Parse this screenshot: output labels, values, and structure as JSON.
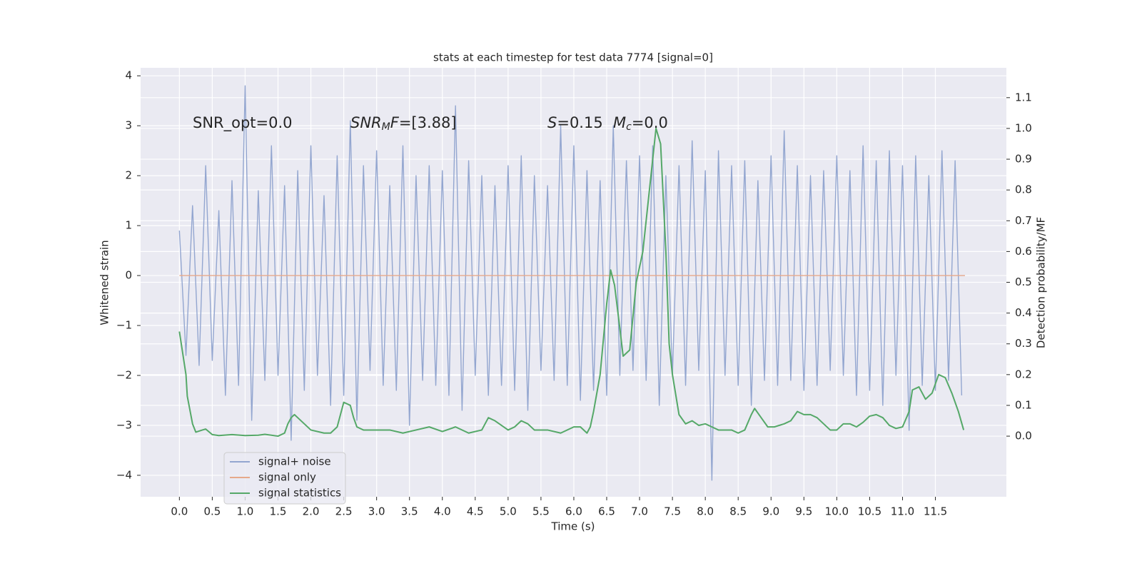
{
  "chart_data": {
    "type": "line",
    "title": "stats at each timestep for test data 7774 [signal=0]",
    "x_label": "Time (s)",
    "y_label": "Whitened strain",
    "y2_label": "Detection probability/MF",
    "annotations": [
      [
        {
          "text": "SNR_opt=0.0",
          "italic": false,
          "sub": false
        }
      ],
      [
        {
          "text": "SNR",
          "italic": true,
          "sub": false
        },
        {
          "text": "M",
          "italic": true,
          "sub": true
        },
        {
          "text": "F",
          "italic": true,
          "sub": false
        },
        {
          "text": "=[3.88]",
          "italic": false,
          "sub": false
        }
      ],
      [
        {
          "text": "S",
          "italic": true,
          "sub": false
        },
        {
          "text": "=0.15",
          "italic": false,
          "sub": false
        }
      ],
      [
        {
          "text": "M",
          "italic": true,
          "sub": false
        },
        {
          "text": "c",
          "italic": true,
          "sub": true
        },
        {
          "text": "=0.0",
          "italic": false,
          "sub": false
        }
      ]
    ],
    "xlim": [
      -0.59,
      12.58
    ],
    "ylim": [
      -4.43,
      4.16
    ],
    "y2lim": [
      -0.197,
      1.197
    ],
    "xticks": [
      {
        "value": 0,
        "label": "0.0"
      },
      {
        "value": 0.5,
        "label": "0.5"
      },
      {
        "value": 1,
        "label": "1.0"
      },
      {
        "value": 1.5,
        "label": "1.5"
      },
      {
        "value": 2,
        "label": "2.0"
      },
      {
        "value": 2.5,
        "label": "2.5"
      },
      {
        "value": 3,
        "label": "3.0"
      },
      {
        "value": 3.5,
        "label": "3.5"
      },
      {
        "value": 4,
        "label": "4.0"
      },
      {
        "value": 4.5,
        "label": "4.5"
      },
      {
        "value": 5,
        "label": "5.0"
      },
      {
        "value": 5.5,
        "label": "5.5"
      },
      {
        "value": 6,
        "label": "6.0"
      },
      {
        "value": 6.5,
        "label": "6.5"
      },
      {
        "value": 7,
        "label": "7.0"
      },
      {
        "value": 7.5,
        "label": "7.5"
      },
      {
        "value": 8,
        "label": "8.0"
      },
      {
        "value": 8.5,
        "label": "8.5"
      },
      {
        "value": 9,
        "label": "9.0"
      },
      {
        "value": 9.5,
        "label": "9.5"
      },
      {
        "value": 10,
        "label": "10.0"
      },
      {
        "value": 10.5,
        "label": "10.5"
      },
      {
        "value": 11,
        "label": "11.0"
      },
      {
        "value": 11.5,
        "label": "11.5"
      }
    ],
    "yticks": [
      {
        "value": -4,
        "label": "−4"
      },
      {
        "value": -3,
        "label": "−3"
      },
      {
        "value": -2,
        "label": "−2"
      },
      {
        "value": -1,
        "label": "−1"
      },
      0,
      1,
      2,
      3,
      4
    ],
    "y2ticks": [
      {
        "value": 0,
        "label": "0.0"
      },
      0.1,
      0.2,
      0.3,
      0.4,
      0.5,
      0.6,
      0.7,
      0.8,
      0.9,
      {
        "value": 1,
        "label": "1.0"
      },
      1.1
    ],
    "grid": true,
    "legend": "lower left",
    "series": [
      {
        "name": "signal+ noise",
        "color": "#93a6d0",
        "x": [
          0,
          0.1,
          0.2,
          0.3,
          0.4,
          0.5,
          0.6,
          0.7,
          0.8,
          0.9,
          1,
          1.1,
          1.2,
          1.3,
          1.4,
          1.5,
          1.6,
          1.7,
          1.8,
          1.9,
          2,
          2.1,
          2.2,
          2.3,
          2.4,
          2.5,
          2.6,
          2.7,
          2.8,
          2.9,
          3,
          3.1,
          3.2,
          3.3,
          3.4,
          3.5,
          3.6,
          3.7,
          3.8,
          3.9,
          4,
          4.1,
          4.2,
          4.3,
          4.4,
          4.5,
          4.6,
          4.7,
          4.8,
          4.9,
          5,
          5.1,
          5.2,
          5.3,
          5.4,
          5.5,
          5.6,
          5.7,
          5.8,
          5.9,
          6,
          6.1,
          6.2,
          6.3,
          6.4,
          6.5,
          6.6,
          6.7,
          6.8,
          6.9,
          7,
          7.1,
          7.2,
          7.3,
          7.4,
          7.5,
          7.6,
          7.7,
          7.8,
          7.9,
          8,
          8.1,
          8.2,
          8.3,
          8.4,
          8.5,
          8.6,
          8.7,
          8.8,
          8.9,
          9,
          9.1,
          9.2,
          9.3,
          9.4,
          9.5,
          9.6,
          9.7,
          9.8,
          9.9,
          10,
          10.1,
          10.2,
          10.3,
          10.4,
          10.5,
          10.6,
          10.7,
          10.8,
          10.9,
          11,
          11.1,
          11.2,
          11.3,
          11.4,
          11.5,
          11.6,
          11.7,
          11.8,
          11.9
        ],
        "values": [
          0.9,
          -1.6,
          1.4,
          -1.8,
          2.2,
          -1.7,
          1.3,
          -2.4,
          1.9,
          -2.2,
          3.8,
          -2.9,
          1.7,
          -2.1,
          2.6,
          -2.0,
          1.8,
          -3.3,
          2.1,
          -2.3,
          2.6,
          -2.0,
          1.6,
          -2.6,
          2.4,
          -2.4,
          3.1,
          -2.9,
          2.2,
          -1.9,
          2.5,
          -2.2,
          1.8,
          -2.3,
          2.6,
          -3.0,
          2.0,
          -2.1,
          2.2,
          -2.2,
          2.1,
          -2.4,
          3.4,
          -2.7,
          2.3,
          -2.0,
          2.0,
          -2.4,
          1.8,
          -2.2,
          2.2,
          -2.3,
          2.4,
          -2.7,
          2.0,
          -1.9,
          1.8,
          -2.1,
          3.0,
          -2.2,
          2.6,
          -2.5,
          2.1,
          -2.3,
          1.9,
          -2.4,
          3.0,
          -2.0,
          2.3,
          -1.9,
          2.4,
          -2.1,
          2.6,
          -2.6,
          2.0,
          -2.0,
          2.2,
          -2.2,
          2.7,
          -1.9,
          2.1,
          -4.1,
          2.5,
          -2.0,
          2.2,
          -2.2,
          2.3,
          -2.6,
          1.9,
          -2.1,
          2.4,
          -2.2,
          2.9,
          -2.1,
          2.2,
          -2.3,
          2.0,
          -2.2,
          2.1,
          -1.9,
          2.4,
          -2.0,
          2.1,
          -2.4,
          2.6,
          -2.3,
          2.3,
          -2.6,
          2.5,
          -2.0,
          2.2,
          -3.1,
          2.4,
          -2.2,
          2.0,
          -2.3,
          2.5,
          -2.1,
          2.3,
          -2.4
        ]
      },
      {
        "name": "signal only",
        "color": "#e6a98a",
        "x": [
          0,
          11.95
        ],
        "values": [
          0,
          0
        ]
      },
      {
        "name": "signal statistics",
        "color": "#55a868",
        "axis": "y2",
        "x": [
          0,
          0.1,
          0.12,
          0.2,
          0.25,
          0.35,
          0.4,
          0.5,
          0.6,
          0.8,
          1,
          1.2,
          1.3,
          1.5,
          1.6,
          1.65,
          1.7,
          1.75,
          1.8,
          2,
          2.2,
          2.3,
          2.4,
          2.5,
          2.6,
          2.65,
          2.7,
          2.8,
          3,
          3.2,
          3.4,
          3.6,
          3.8,
          4,
          4.2,
          4.4,
          4.6,
          4.7,
          4.8,
          5,
          5.1,
          5.2,
          5.3,
          5.4,
          5.6,
          5.8,
          6,
          6.1,
          6.2,
          6.25,
          6.3,
          6.4,
          6.5,
          6.56,
          6.62,
          6.7,
          6.75,
          6.85,
          6.95,
          7.05,
          7.15,
          7.25,
          7.32,
          7.4,
          7.45,
          7.5,
          7.6,
          7.7,
          7.8,
          7.9,
          8,
          8.1,
          8.2,
          8.4,
          8.5,
          8.6,
          8.7,
          8.75,
          8.85,
          8.95,
          9.05,
          9.2,
          9.3,
          9.4,
          9.5,
          9.6,
          9.7,
          9.8,
          9.9,
          10,
          10.1,
          10.2,
          10.3,
          10.4,
          10.5,
          10.6,
          10.7,
          10.8,
          10.9,
          11,
          11.1,
          11.15,
          11.25,
          11.35,
          11.45,
          11.55,
          11.65,
          11.75,
          11.85,
          11.93
        ],
        "values": [
          0.34,
          0.2,
          0.13,
          0.04,
          0.013,
          0.02,
          0.023,
          0.005,
          0.002,
          0.005,
          0.002,
          0.003,
          0.006,
          0,
          0.01,
          0.04,
          0.06,
          0.07,
          0.06,
          0.02,
          0.01,
          0.01,
          0.03,
          0.11,
          0.1,
          0.06,
          0.03,
          0.02,
          0.02,
          0.02,
          0.01,
          0.02,
          0.03,
          0.015,
          0.03,
          0.01,
          0.02,
          0.06,
          0.05,
          0.02,
          0.03,
          0.05,
          0.04,
          0.02,
          0.02,
          0.01,
          0.03,
          0.03,
          0.01,
          0.03,
          0.08,
          0.2,
          0.43,
          0.54,
          0.49,
          0.35,
          0.26,
          0.28,
          0.5,
          0.6,
          0.8,
          1,
          0.95,
          0.6,
          0.3,
          0.2,
          0.07,
          0.04,
          0.05,
          0.035,
          0.04,
          0.03,
          0.02,
          0.02,
          0.01,
          0.02,
          0.07,
          0.09,
          0.06,
          0.03,
          0.03,
          0.04,
          0.05,
          0.08,
          0.07,
          0.07,
          0.06,
          0.04,
          0.02,
          0.02,
          0.04,
          0.04,
          0.03,
          0.045,
          0.065,
          0.07,
          0.06,
          0.035,
          0.025,
          0.03,
          0.08,
          0.15,
          0.16,
          0.12,
          0.14,
          0.2,
          0.19,
          0.14,
          0.08,
          0.02
        ]
      }
    ]
  }
}
